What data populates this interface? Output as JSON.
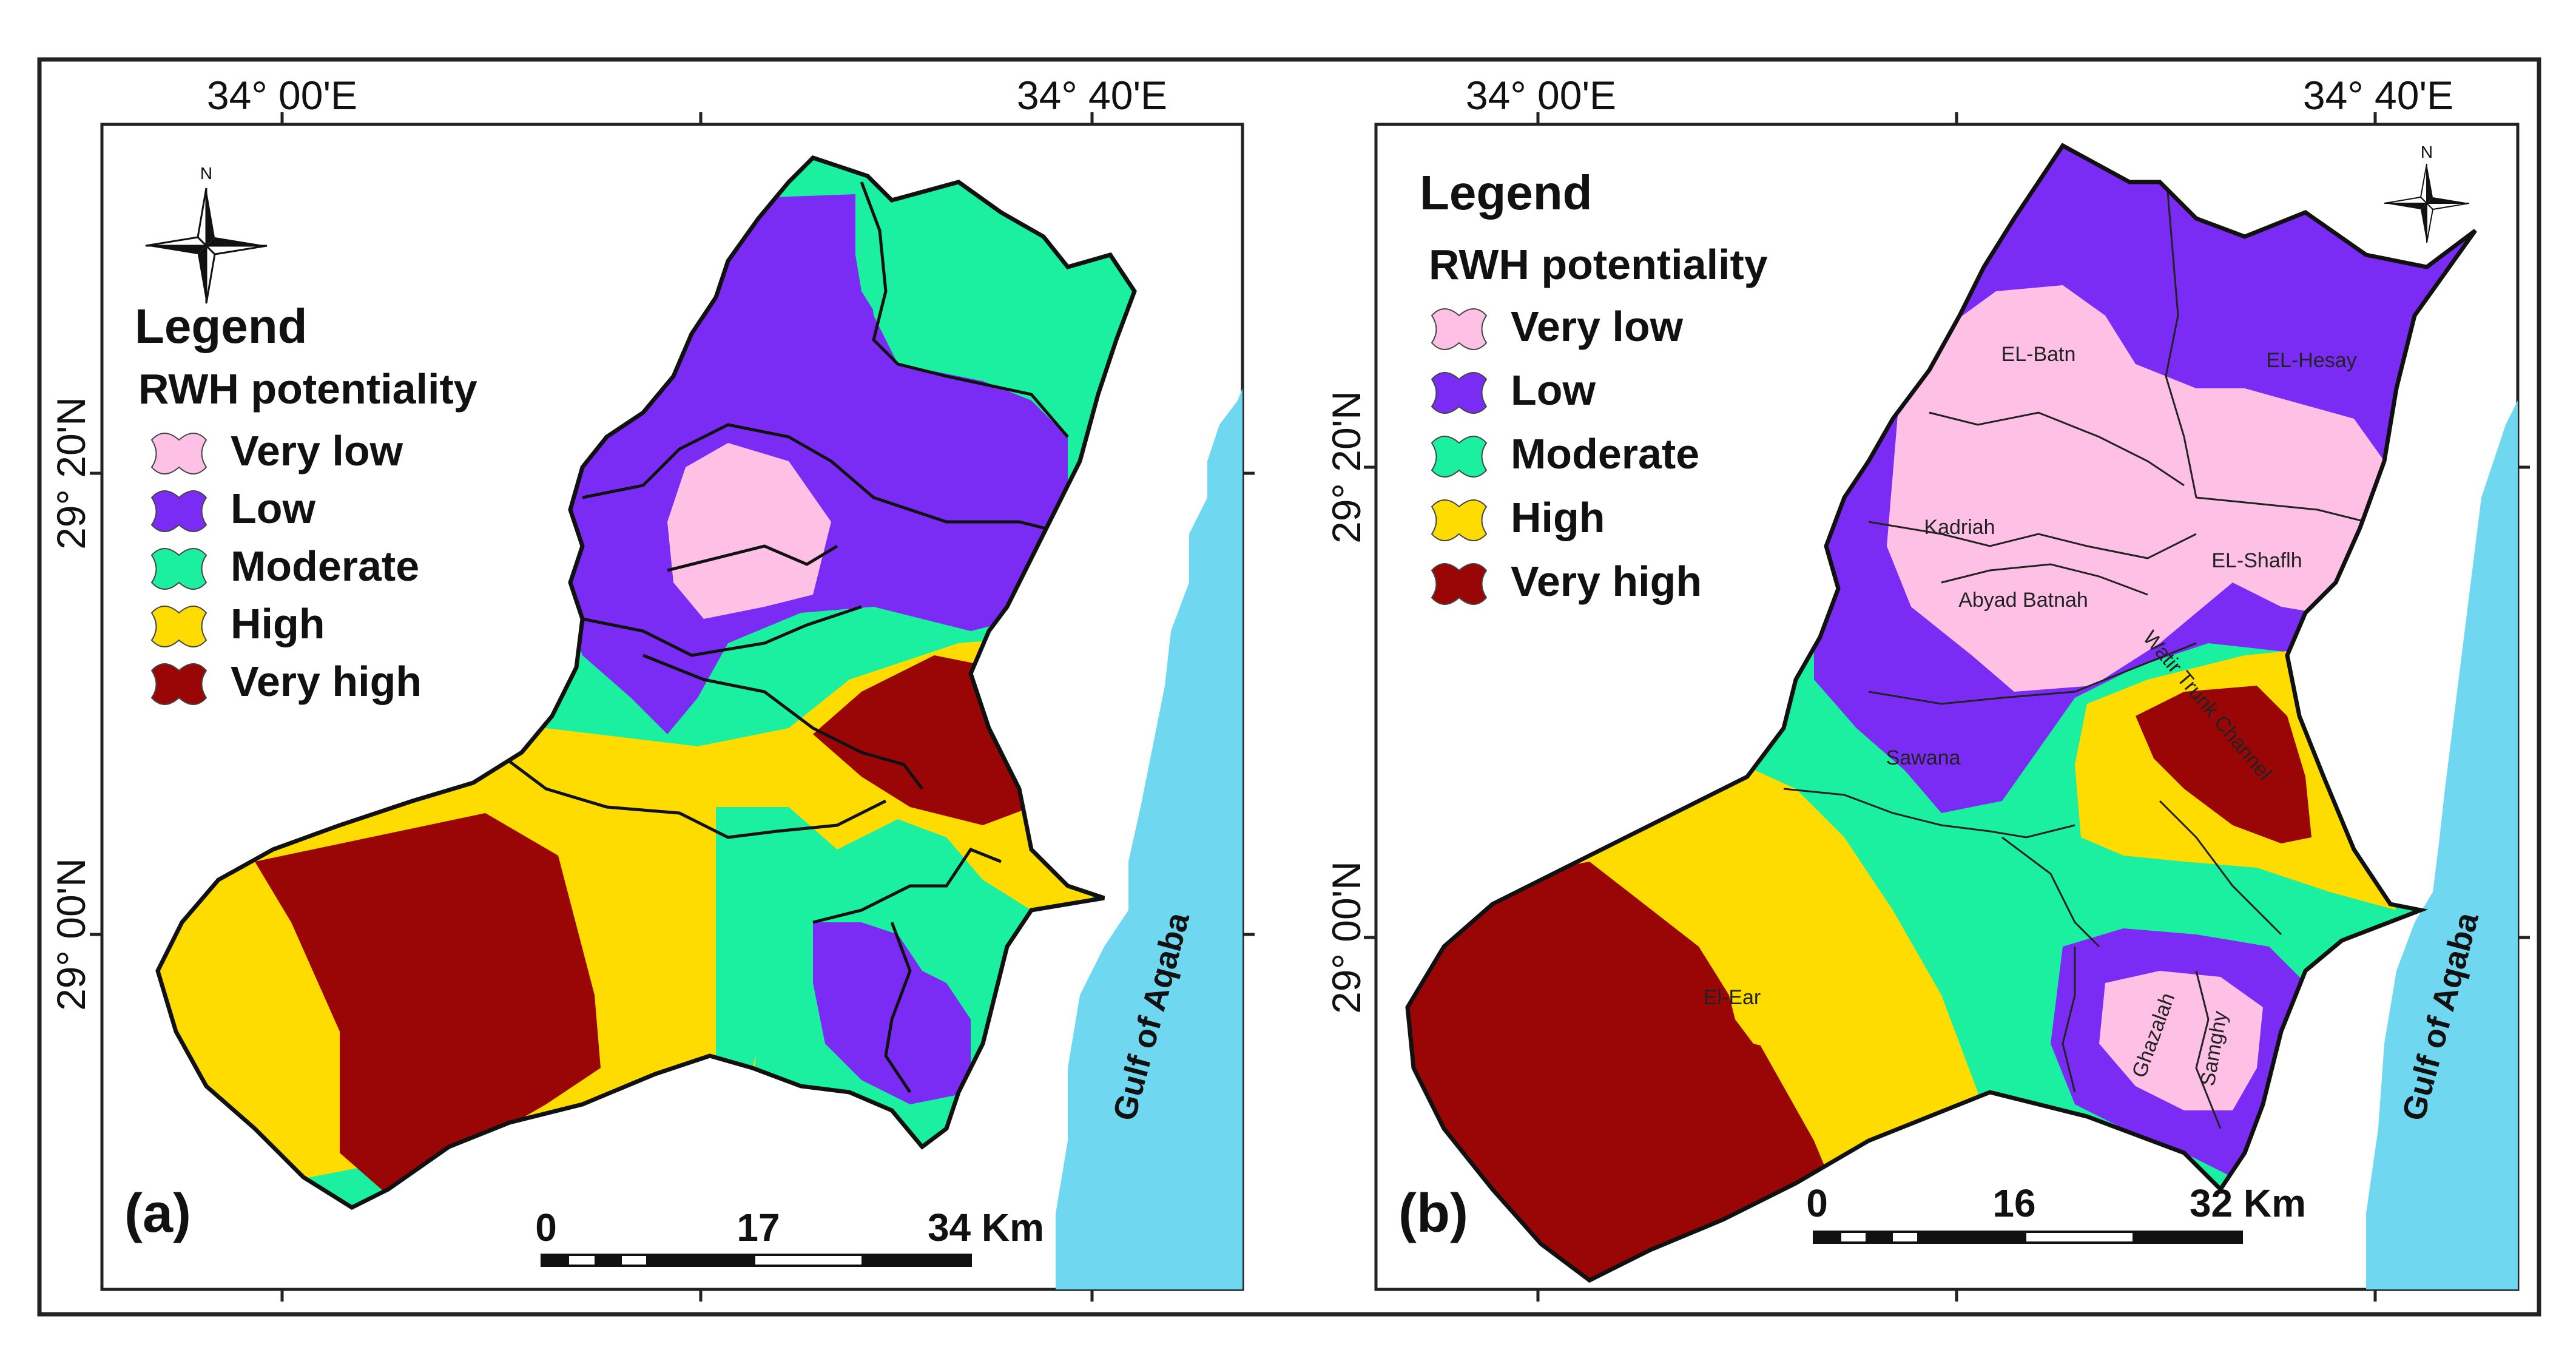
{
  "colors": {
    "very_low": "#FFC0E6",
    "low": "#7A2CF5",
    "moderate": "#1AF0A0",
    "high": "#FFDC00",
    "very_high": "#9A0606",
    "sea": "#6FD8F0",
    "frame": "#222222"
  },
  "coords": {
    "lon_left": "34° 00'E",
    "lon_right": "34° 40'E",
    "lat_top": "29° 20'N",
    "lat_bottom": "29° 00'N"
  },
  "legend": {
    "title": "Legend",
    "subtitle": "RWH potentiality",
    "items": [
      {
        "label": "Very low",
        "key": "very_low"
      },
      {
        "label": "Low",
        "key": "low"
      },
      {
        "label": "Moderate",
        "key": "moderate"
      },
      {
        "label": "High",
        "key": "high"
      },
      {
        "label": "Very high",
        "key": "very_high"
      }
    ]
  },
  "north_label": "N",
  "sea_label": "Gulf of Aqaba",
  "panel_a": {
    "letter": "(a)",
    "scale": {
      "s0": "0",
      "s1": "17",
      "s2": "34 Km"
    }
  },
  "panel_b": {
    "letter": "(b)",
    "scale": {
      "s0": "0",
      "s1": "16",
      "s2": "32 Km"
    },
    "basins": {
      "el_batn": "EL-Batn",
      "el_hesay": "EL-Hesay",
      "kadriah": "Kadriah",
      "el_shaflh": "EL-Shaflh",
      "abyad_batnah": "Abyad Batnah",
      "watir": "Watir Trunk Channel",
      "sawana": "Sawana",
      "el_ear": "El-Ear",
      "ghazalah": "Ghazalah",
      "samghy": "Samghy"
    }
  }
}
